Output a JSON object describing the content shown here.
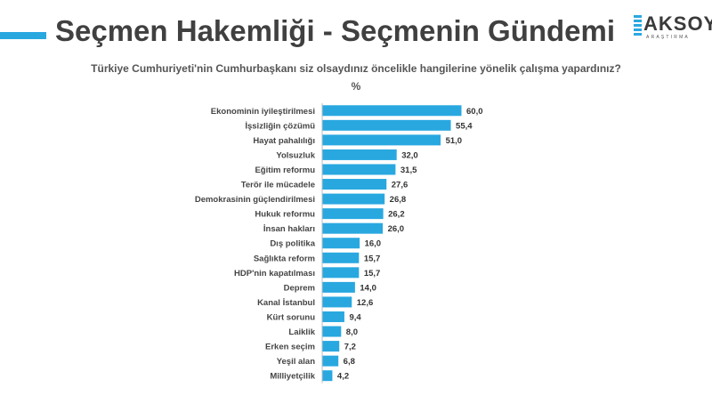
{
  "header": {
    "title": "Seçmen Hakemliği - Seçmenin Gündemi",
    "logo_text": "AKSOY",
    "logo_sub": "ARAŞTIRMA"
  },
  "colors": {
    "accent": "#29a8e0",
    "bar": "#29a8e0"
  },
  "chart_data": {
    "type": "bar",
    "orientation": "horizontal",
    "title": "Türkiye Cumhuriyeti'nin Cumhurbaşkanı siz olsaydınız öncelikle hangilerine yönelik çalışma yapardınız?",
    "unit": "%",
    "categories": [
      "Ekonominin iyileştirilmesi",
      "İşsizliğin çözümü",
      "Hayat pahalılığı",
      "Yolsuzluk",
      "Eğitim reformu",
      "Terör ile mücadele",
      "Demokrasinin güçlendirilmesi",
      "Hukuk reformu",
      "İnsan hakları",
      "Dış politika",
      "Sağlıkta reform",
      "HDP'nin kapatılması",
      "Deprem",
      "Kanal İstanbul",
      "Kürt sorunu",
      "Laiklik",
      "Erken seçim",
      "Yeşil alan",
      "Milliyetçilik"
    ],
    "values": [
      60.0,
      55.4,
      51.0,
      32.0,
      31.5,
      27.6,
      26.8,
      26.2,
      26.0,
      16.0,
      15.7,
      15.7,
      14.0,
      12.6,
      9.4,
      8.0,
      7.2,
      6.8,
      4.2
    ],
    "value_labels": [
      "60,0",
      "55,4",
      "51,0",
      "32,0",
      "31,5",
      "27,6",
      "26,8",
      "26,2",
      "26,0",
      "16,0",
      "15,7",
      "15,7",
      "14,0",
      "12,6",
      "9,4",
      "8,0",
      "7,2",
      "6,8",
      "4,2"
    ],
    "xlim": [
      0,
      60
    ],
    "grid": false,
    "legend": "none"
  }
}
